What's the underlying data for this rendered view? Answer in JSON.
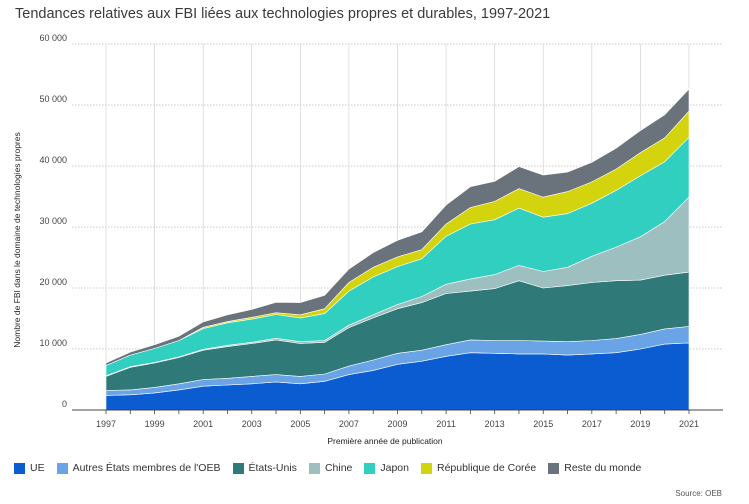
{
  "chart_data": {
    "type": "area",
    "title": "Tendances relatives aux FBI liées aux technologies propres et durables, 1997-2021",
    "xlabel": "Première année de publication",
    "ylabel": "Nombre de FBI dans le domaine de technologies propres",
    "source": "Source: OEB",
    "stacked": true,
    "ylim": [
      0,
      60000
    ],
    "xlim": [
      1997,
      2021
    ],
    "y_ticks": [
      "0",
      "10 000",
      "20 000",
      "30 000",
      "40 000",
      "50 000",
      "60 000"
    ],
    "y_tick_values": [
      0,
      10000,
      20000,
      30000,
      40000,
      50000,
      60000
    ],
    "x_ticks": [
      1997,
      1999,
      2001,
      2003,
      2005,
      2007,
      2009,
      2011,
      2013,
      2015,
      2017,
      2019,
      2021
    ],
    "grid": "horizontal",
    "legend_position": "bottom",
    "x": [
      1997,
      1998,
      1999,
      2000,
      2001,
      2002,
      2003,
      2004,
      2005,
      2006,
      2007,
      2008,
      2009,
      2010,
      2011,
      2012,
      2013,
      2014,
      2015,
      2016,
      2017,
      2018,
      2019,
      2020,
      2021
    ],
    "series": [
      {
        "name": "UE",
        "color": "#0a5cd0",
        "values": [
          2400,
          2500,
          2800,
          3300,
          3900,
          4100,
          4300,
          4600,
          4300,
          4700,
          5800,
          6500,
          7500,
          8000,
          8800,
          9400,
          9300,
          9200,
          9200,
          9000,
          9200,
          9400,
          10000,
          10800,
          11000
        ]
      },
      {
        "name": "Autres États membres de l'OEB",
        "color": "#6aa3e6",
        "values": [
          800,
          800,
          900,
          1000,
          1100,
          1100,
          1200,
          1200,
          1200,
          1200,
          1400,
          1700,
          1800,
          1800,
          1900,
          2100,
          2100,
          2200,
          2100,
          2200,
          2200,
          2300,
          2400,
          2500,
          2700
        ]
      },
      {
        "name": "États-Unis",
        "color": "#2f7a78",
        "values": [
          2300,
          3700,
          4000,
          4300,
          4800,
          5200,
          5400,
          5700,
          5400,
          5200,
          6300,
          6900,
          7300,
          7800,
          8400,
          8000,
          8500,
          9800,
          8700,
          9200,
          9500,
          9500,
          8900,
          8800,
          8900
        ]
      },
      {
        "name": "Chine",
        "color": "#9dbfbf",
        "values": [
          100,
          100,
          100,
          100,
          150,
          200,
          200,
          250,
          300,
          300,
          400,
          500,
          700,
          1000,
          1500,
          2000,
          2300,
          2500,
          2700,
          3000,
          4300,
          5500,
          7100,
          8800,
          12300
        ]
      },
      {
        "name": "Japon",
        "color": "#30cfbf",
        "values": [
          1700,
          1900,
          2300,
          2700,
          3400,
          3700,
          3800,
          3900,
          3900,
          4400,
          5600,
          6200,
          6200,
          6200,
          7900,
          9000,
          9000,
          9400,
          8900,
          8800,
          8700,
          9300,
          10000,
          9800,
          9800
        ]
      },
      {
        "name": "République de Corée",
        "color": "#d4d40e",
        "values": [
          0,
          0,
          0,
          0,
          200,
          200,
          300,
          300,
          500,
          800,
          1400,
          1600,
          1600,
          1500,
          2000,
          2700,
          3000,
          3200,
          3300,
          3600,
          3500,
          3500,
          3800,
          3900,
          4300
        ]
      },
      {
        "name": "Reste du monde",
        "color": "#6a727c",
        "values": [
          400,
          500,
          600,
          700,
          900,
          1100,
          1300,
          1700,
          2000,
          2200,
          2200,
          2400,
          2700,
          2900,
          3100,
          3400,
          3300,
          3600,
          3600,
          3200,
          3200,
          3400,
          3600,
          3800,
          3600
        ]
      }
    ]
  }
}
